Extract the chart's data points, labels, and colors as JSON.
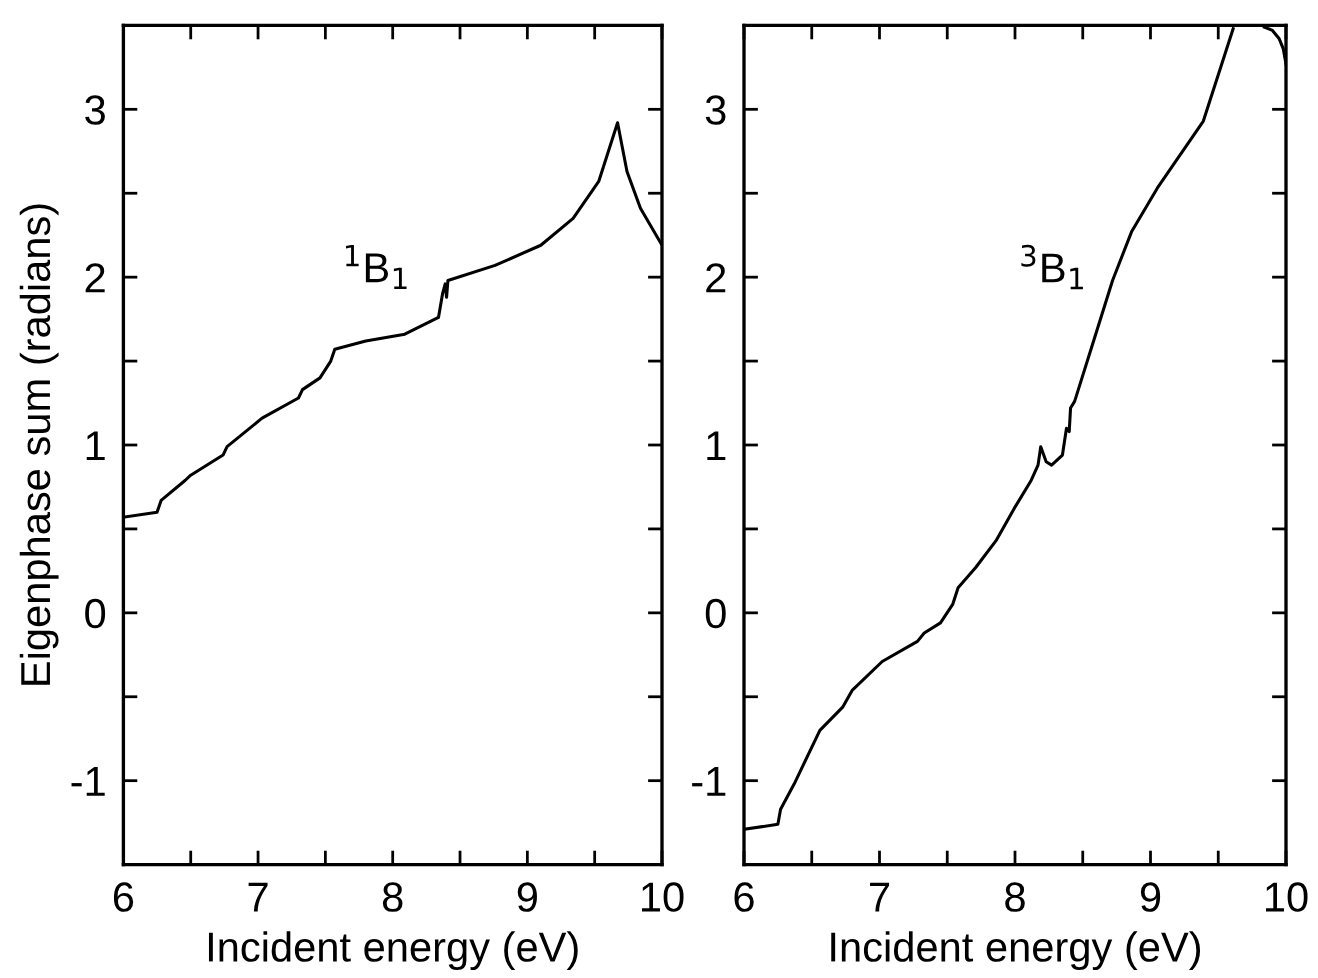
{
  "chart_data": [
    {
      "type": "line",
      "xlabel": "Incident energy (eV)",
      "ylabel": "Eigenphase sum (radians)",
      "annotations": [
        "$^{1}$B$_{1}$"
      ],
      "series": [
        {
          "color": "#000000",
          "x": [
            6.0,
            6.25,
            6.28,
            6.46,
            6.5,
            6.74,
            6.77,
            7.03,
            7.3,
            7.33,
            7.46,
            7.54,
            7.57,
            7.8,
            8.09,
            8.34,
            8.37,
            8.39,
            8.4,
            8.41,
            8.76,
            9.1,
            9.34,
            9.53,
            9.67,
            9.74,
            9.84,
            10.0
          ],
          "values": [
            0.57,
            0.6,
            0.67,
            0.79,
            0.82,
            0.94,
            0.99,
            1.16,
            1.28,
            1.33,
            1.4,
            1.5,
            1.57,
            1.62,
            1.66,
            1.76,
            1.9,
            1.96,
            1.88,
            1.98,
            2.07,
            2.19,
            2.35,
            2.57,
            2.92,
            2.63,
            2.41,
            2.19
          ]
        }
      ],
      "xlim": [
        6,
        10
      ],
      "ylim": [
        -1.5,
        3.5
      ],
      "xticks": [
        6,
        {
          "value": 6.5,
          "label": null
        },
        7,
        {
          "value": 7.5,
          "label": null
        },
        8,
        {
          "value": 8.5,
          "label": null
        },
        9,
        {
          "value": 9.5,
          "label": null
        },
        10
      ],
      "yticks": [
        {
          "value": -1.5,
          "label": null
        },
        -1,
        {
          "value": -0.5,
          "label": null
        },
        0,
        {
          "value": 0.5,
          "label": null
        },
        1,
        {
          "value": 1.5,
          "label": null
        },
        2,
        {
          "value": 2.5,
          "label": null
        },
        3,
        {
          "value": 3.5,
          "label": null
        }
      ],
      "grid": false,
      "legend": false,
      "marker": "none",
      "line_style": "solid"
    },
    {
      "type": "line",
      "xlabel": "Incident energy (eV)",
      "annotations": [
        "$^{3}$B$_{1}$"
      ],
      "series": [
        {
          "color": "#000000",
          "x": [
            6.0,
            6.25,
            6.27,
            6.37,
            6.56,
            6.73,
            6.8,
            7.02,
            7.28,
            7.33,
            7.45,
            7.54,
            7.58,
            7.71,
            7.86,
            8.0,
            8.12,
            8.17,
            8.19,
            8.23,
            8.27,
            8.35,
            8.38,
            8.4,
            8.41,
            8.44,
            8.58,
            8.72,
            8.86,
            9.05,
            9.39,
            9.61
          ],
          "values": [
            -1.29,
            -1.26,
            -1.17,
            -1.02,
            -0.7,
            -0.56,
            -0.46,
            -0.29,
            -0.17,
            -0.12,
            -0.06,
            0.05,
            0.15,
            0.27,
            0.43,
            0.63,
            0.79,
            0.88,
            0.99,
            0.9,
            0.88,
            0.94,
            1.1,
            1.08,
            1.22,
            1.26,
            1.62,
            1.98,
            2.27,
            2.53,
            2.93,
            3.48
          ]
        },
        {
          "color": "#000000",
          "x": [
            9.84,
            9.9,
            9.95,
            9.98,
            10.0
          ],
          "values": [
            3.49,
            3.47,
            3.42,
            3.36,
            3.27
          ]
        }
      ],
      "xlim": [
        6,
        10
      ],
      "ylim": [
        -1.5,
        3.5
      ],
      "xticks": [
        6,
        {
          "value": 6.5,
          "label": null
        },
        7,
        {
          "value": 7.5,
          "label": null
        },
        8,
        {
          "value": 8.5,
          "label": null
        },
        9,
        {
          "value": 9.5,
          "label": null
        },
        10
      ],
      "yticks": [
        {
          "value": -1.5,
          "label": null
        },
        -1,
        {
          "value": -0.5,
          "label": null
        },
        0,
        {
          "value": 0.5,
          "label": null
        },
        1,
        {
          "value": 1.5,
          "label": null
        },
        2,
        {
          "value": 2.5,
          "label": null
        },
        3,
        {
          "value": 3.5,
          "label": null
        }
      ],
      "grid": false,
      "legend": false,
      "marker": "none",
      "line_style": "solid"
    }
  ]
}
